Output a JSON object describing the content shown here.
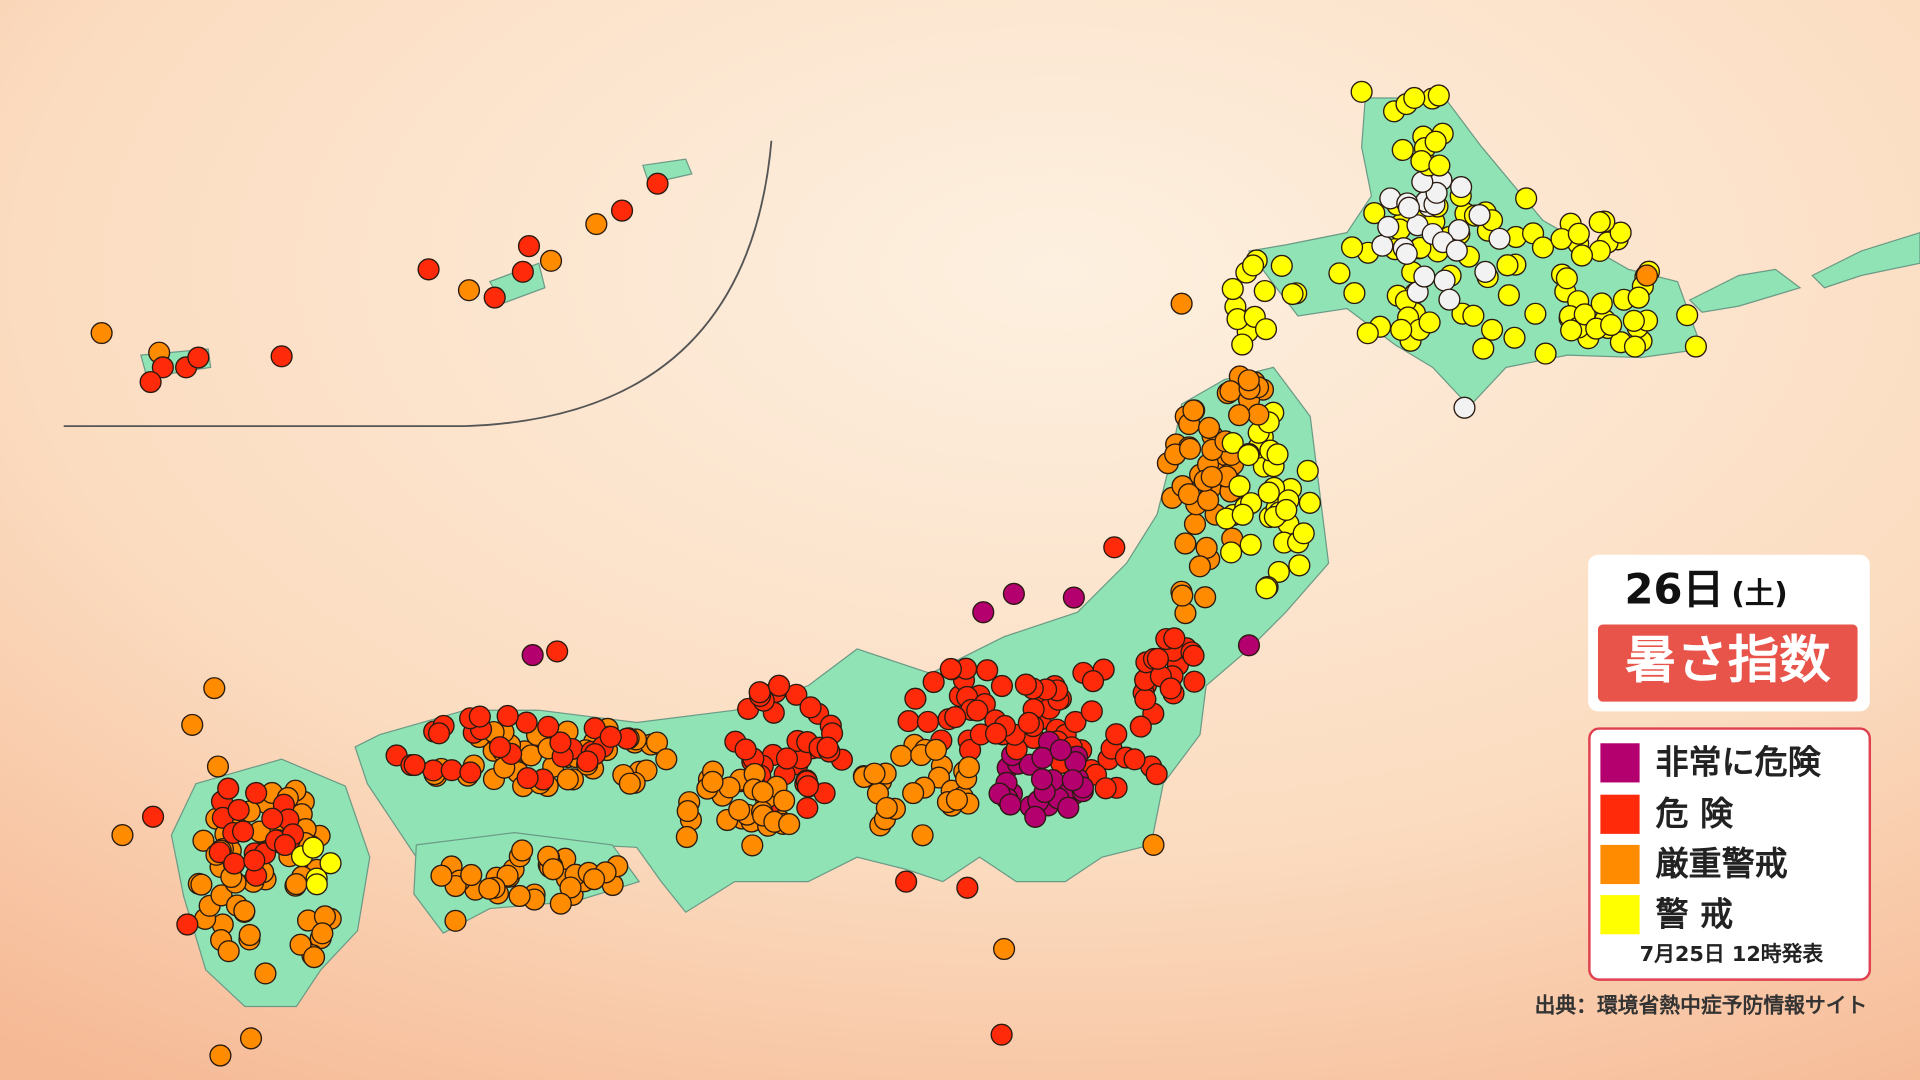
{
  "header": {
    "day": "26日",
    "weekday": "(土)",
    "title": "暑さ指数"
  },
  "legend": {
    "items": [
      {
        "label": "非常に危険"
      },
      {
        "label": "危 険"
      },
      {
        "label": "厳重警戒"
      },
      {
        "label": "警 戒"
      }
    ],
    "issued": "7月25日 12時発表"
  },
  "source": "出典：環境省熱中症予防情報サイト"
}
